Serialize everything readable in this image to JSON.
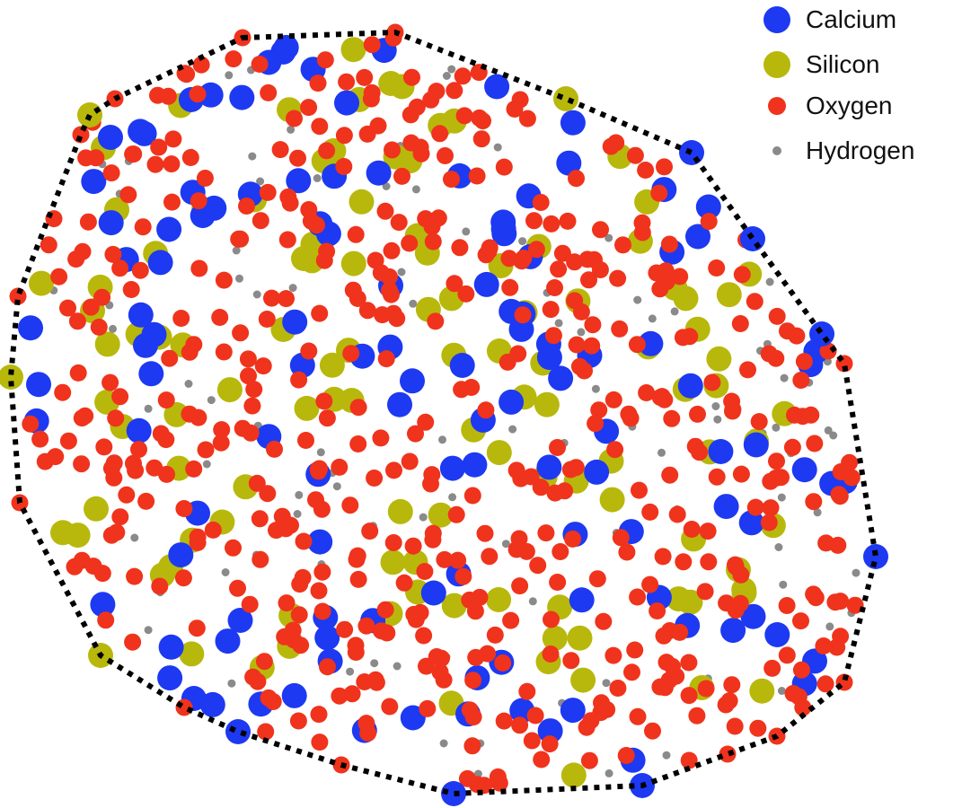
{
  "colors": {
    "calcium": "#1d39f2",
    "silicon": "#b8b80c",
    "oxygen": "#f0331c",
    "hydrogen": "#8a8a8a",
    "hull": "#000000"
  },
  "legend": [
    {
      "key": "calcium",
      "label": "Calcium",
      "color": "#1d39f2"
    },
    {
      "key": "silicon",
      "label": "Silicon",
      "color": "#b8b80c"
    },
    {
      "key": "oxygen",
      "label": "Oxygen",
      "color": "#f0331c"
    },
    {
      "key": "hydrogen",
      "label": "Hydrogen",
      "color": "#8a8a8a"
    }
  ]
}
